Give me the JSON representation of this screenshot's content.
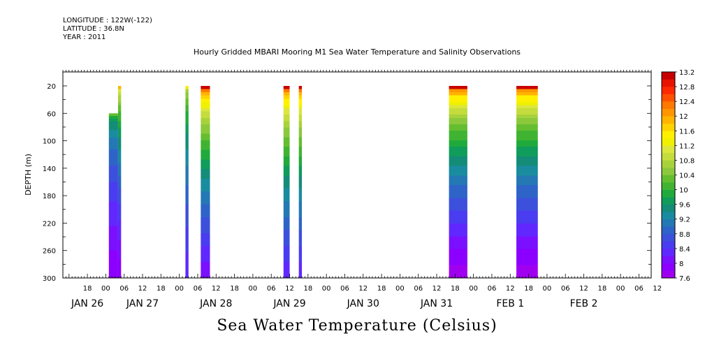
{
  "header": {
    "longitude": "LONGITUDE : 122W(-122)",
    "latitude": "LATITUDE : 36.8N",
    "year": "YEAR : 2011"
  },
  "chart_data": {
    "type": "heatmap",
    "title": "Hourly Gridded MBARI Mooring M1 Sea Water Temperature and Salinity Observations",
    "bottom_title": "Sea Water Temperature (Celsius)",
    "xlabel": "",
    "ylabel": "DEPTH (m)",
    "ylim": [
      300,
      20
    ],
    "x_range_hours": [
      -14,
      178
    ],
    "y_ticks": [
      20,
      60,
      100,
      140,
      180,
      220,
      260,
      300
    ],
    "x_hour_ticks": [
      "18",
      "00",
      "06",
      "12",
      "18",
      "00",
      "06",
      "12",
      "18",
      "00",
      "06",
      "12",
      "18",
      "00",
      "06",
      "12",
      "18",
      "00",
      "06",
      "12",
      "18",
      "00",
      "06",
      "12",
      "18",
      "00",
      "06",
      "12",
      "18",
      "00",
      "06",
      "12"
    ],
    "x_day_labels": [
      {
        "label": "JAN 26",
        "hour": -6
      },
      {
        "label": "JAN 27",
        "hour": 12
      },
      {
        "label": "JAN 28",
        "hour": 36
      },
      {
        "label": "JAN 29",
        "hour": 60
      },
      {
        "label": "JAN 30",
        "hour": 84
      },
      {
        "label": "JAN 31",
        "hour": 108
      },
      {
        "label": "FEB  1",
        "hour": 132
      },
      {
        "label": "FEB  2",
        "hour": 156
      }
    ],
    "colorbar": {
      "levels": [
        7.6,
        7.8,
        8,
        8.2,
        8.4,
        8.6,
        8.8,
        9,
        9.2,
        9.4,
        9.6,
        9.8,
        10,
        10.2,
        10.4,
        10.6,
        10.8,
        11,
        11.2,
        11.4,
        11.6,
        11.8,
        12,
        12.2,
        12.4,
        12.6,
        12.8,
        13,
        13.2
      ],
      "labels": [
        "13.2",
        "12.8",
        "12.4",
        "12",
        "11.6",
        "11.2",
        "10.8",
        "10.4",
        "10",
        "9.6",
        "9.2",
        "8.8",
        "8.4",
        "8",
        "7.6"
      ],
      "colors": [
        "#a000f0",
        "#8c00ff",
        "#7a10ff",
        "#6028ff",
        "#4a3cf0",
        "#3c50dc",
        "#2e64c8",
        "#2478b4",
        "#1a8ca0",
        "#148c78",
        "#109c5a",
        "#20aa3c",
        "#40b432",
        "#64be30",
        "#8cc83c",
        "#a8d23c",
        "#c4dc3c",
        "#dce63c",
        "#f0f000",
        "#fff000",
        "#ffd200",
        "#ffb400",
        "#ff9600",
        "#ff7800",
        "#ff5000",
        "#ff2800",
        "#e61400",
        "#c80000"
      ]
    },
    "segments": [
      {
        "start_hour": 1,
        "end_hour": 4,
        "top_depth": 60,
        "surface_temp": 10.2,
        "bottom_temp": 7.8
      },
      {
        "start_hour": 4,
        "end_hour": 5,
        "top_depth": 20,
        "surface_temp": 11.8,
        "bottom_temp": 7.8
      },
      {
        "start_hour": 26,
        "end_hour": 27,
        "top_depth": 20,
        "surface_temp": 11.2,
        "bottom_temp": 8.2
      },
      {
        "start_hour": 31,
        "end_hour": 34,
        "top_depth": 20,
        "surface_temp": 13.0,
        "bottom_temp": 8.0
      },
      {
        "start_hour": 58,
        "end_hour": 60,
        "top_depth": 20,
        "surface_temp": 13.0,
        "bottom_temp": 8.2
      },
      {
        "start_hour": 63,
        "end_hour": 64,
        "top_depth": 20,
        "surface_temp": 13.0,
        "bottom_temp": 8.2
      },
      {
        "start_hour": 112,
        "end_hour": 118,
        "top_depth": 20,
        "surface_temp": 13.0,
        "bottom_temp": 7.6
      },
      {
        "start_hour": 134,
        "end_hour": 141,
        "top_depth": 20,
        "surface_temp": 13.0,
        "bottom_temp": 7.6
      }
    ]
  }
}
